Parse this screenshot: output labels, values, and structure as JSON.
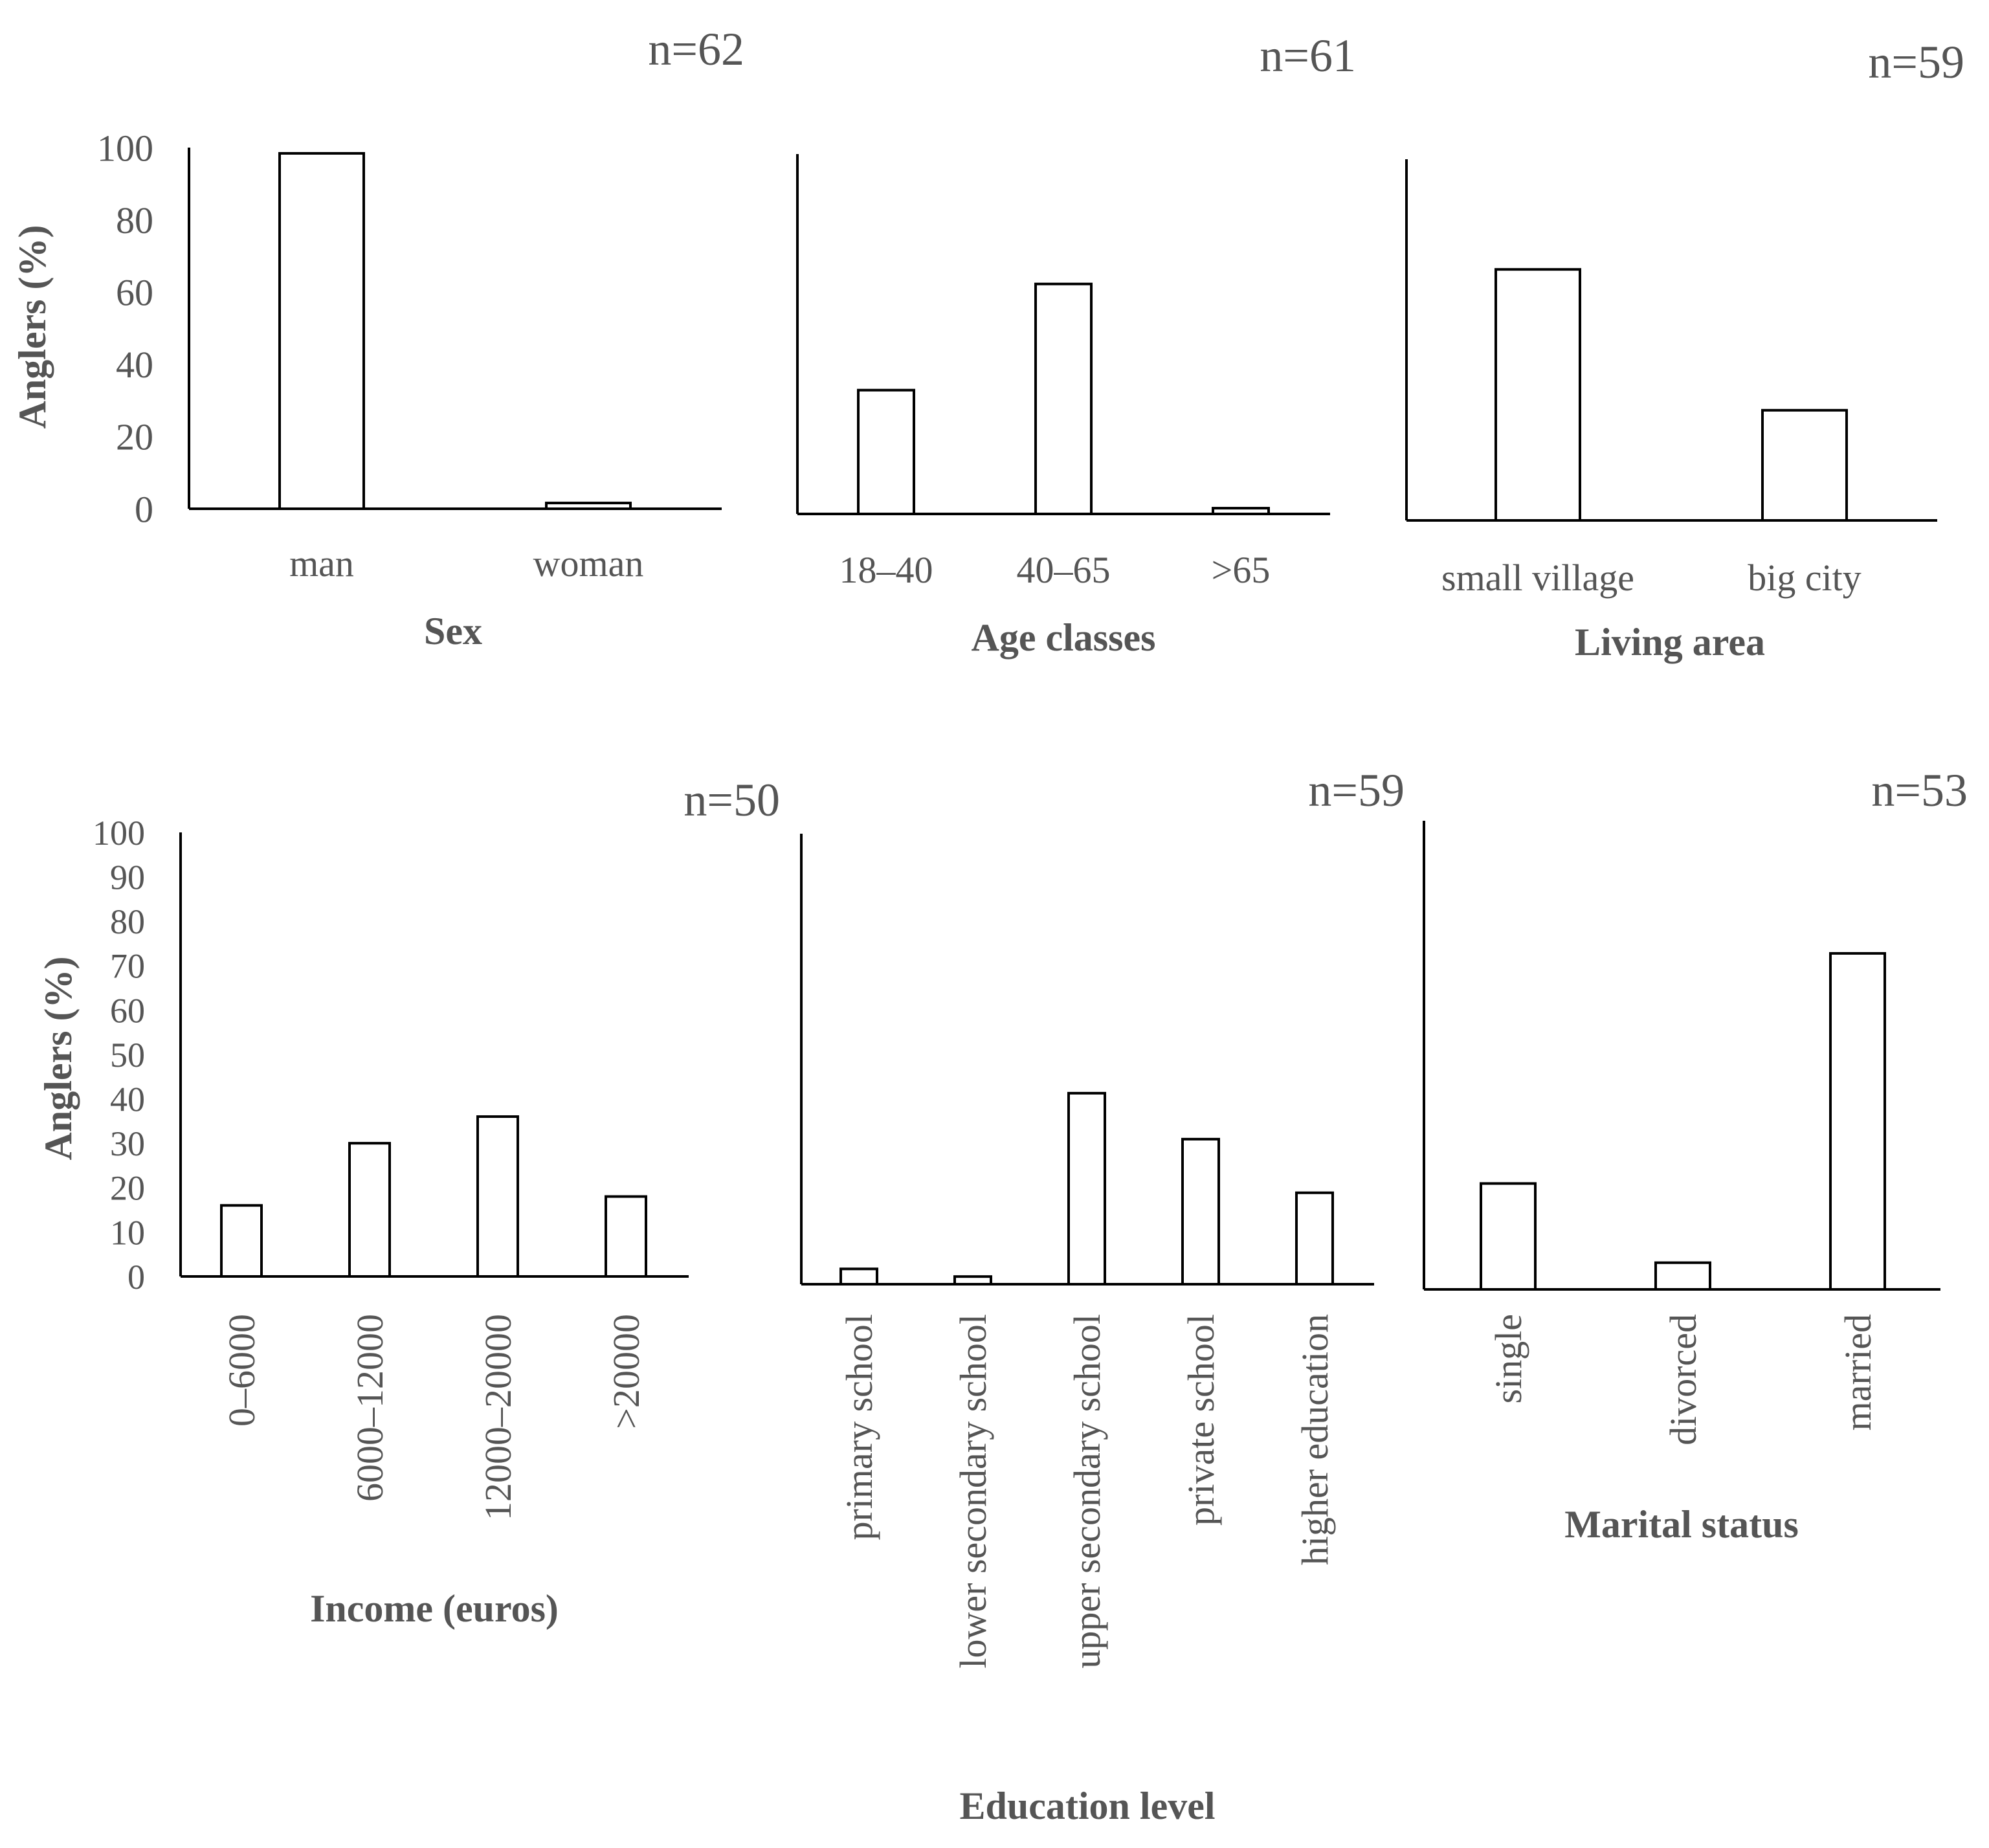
{
  "chart_data": [
    {
      "type": "bar",
      "id": "sex",
      "n_label": "n=62",
      "xlabel": "Sex",
      "ylabel": "Anglers (%)",
      "categories": [
        "man",
        "woman"
      ],
      "values": [
        98.4,
        1.6
      ],
      "ylim": [
        0,
        100
      ],
      "yticks": [
        "0",
        "20",
        "40",
        "60",
        "80",
        "100"
      ]
    },
    {
      "type": "bar",
      "id": "age",
      "n_label": "n=61",
      "xlabel": "Age classes",
      "ylabel": "",
      "categories": [
        "18–40",
        "40–65",
        ">65"
      ],
      "values": [
        34.4,
        63.9,
        1.6
      ],
      "ylim": [
        0,
        100
      ],
      "yticks": []
    },
    {
      "type": "bar",
      "id": "living",
      "n_label": "n=59",
      "xlabel": "Living area",
      "ylabel": "",
      "categories": [
        "small village",
        "big city"
      ],
      "values": [
        69.5,
        30.5
      ],
      "ylim": [
        0,
        100
      ],
      "yticks": []
    },
    {
      "type": "bar",
      "id": "income",
      "n_label": "n=50",
      "xlabel": "Income (euros)",
      "ylabel": "Anglers (%)",
      "categories": [
        "0–6000",
        "6000–12000",
        "12000–20000",
        ">20000"
      ],
      "values": [
        16,
        30,
        36,
        18
      ],
      "ylim": [
        0,
        100
      ],
      "yticks": [
        "0",
        "10",
        "20",
        "30",
        "40",
        "50",
        "60",
        "70",
        "80",
        "90",
        "100"
      ]
    },
    {
      "type": "bar",
      "id": "education",
      "n_label": "n=59",
      "xlabel": "Education level",
      "ylabel": "",
      "categories": [
        "primary school",
        "lower secondary school",
        "upper secondary school",
        "private school",
        "higher education"
      ],
      "values": [
        3.4,
        1.7,
        42.4,
        32.2,
        20.3
      ],
      "ylim": [
        0,
        100
      ],
      "yticks": []
    },
    {
      "type": "bar",
      "id": "marital",
      "n_label": "n=53",
      "xlabel": "Marital status",
      "ylabel": "",
      "categories": [
        "single",
        "divorced",
        "married"
      ],
      "values": [
        22.6,
        5.7,
        71.7
      ],
      "ylim": [
        0,
        100
      ],
      "yticks": []
    }
  ]
}
